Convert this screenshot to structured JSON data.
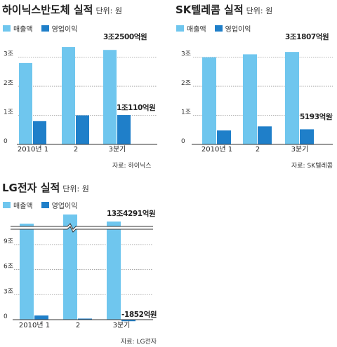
{
  "colors": {
    "revenue": "#6fc6ee",
    "operating_profit": "#1f7fc9",
    "grid": "#999999",
    "text": "#222222"
  },
  "legend": {
    "revenue": "매출액",
    "operating_profit": "영업이익"
  },
  "unit_label": "단위: 원",
  "chart_data": [
    {
      "type": "bar",
      "title": "하이닉스반도체 실적",
      "categories": [
        "2010년 1",
        "2",
        "3분기"
      ],
      "series": [
        {
          "name": "매출액",
          "values": [
            2.8,
            3.35,
            3.25
          ]
        },
        {
          "name": "영업이익",
          "values": [
            0.8,
            1.0,
            1.011
          ]
        }
      ],
      "yticks": [
        {
          "value": 0,
          "label": "0"
        },
        {
          "value": 1,
          "label": "1조"
        },
        {
          "value": 2,
          "label": "2조"
        },
        {
          "value": 3,
          "label": "3조"
        }
      ],
      "ylim": [
        0,
        3.4
      ],
      "annotations": [
        {
          "text": "3조2500억원",
          "series": 0,
          "index": 2
        },
        {
          "text": "1조110억원",
          "series": 1,
          "index": 2
        }
      ],
      "source": "자료: 하이닉스",
      "grid": true
    },
    {
      "type": "bar",
      "title": "SK텔레콤 실적",
      "categories": [
        "2010년 1",
        "2",
        "3분기"
      ],
      "series": [
        {
          "name": "매출액",
          "values": [
            3.0,
            3.1,
            3.18
          ]
        },
        {
          "name": "영업이익",
          "values": [
            0.48,
            0.62,
            0.52
          ]
        }
      ],
      "yticks": [
        {
          "value": 0,
          "label": "0"
        },
        {
          "value": 1,
          "label": "1조"
        },
        {
          "value": 2,
          "label": "2조"
        },
        {
          "value": 3,
          "label": "3조"
        }
      ],
      "ylim": [
        0,
        3.4
      ],
      "annotations": [
        {
          "text": "3조1807억원",
          "series": 0,
          "index": 2
        },
        {
          "text": "5193억원",
          "series": 1,
          "index": 2
        }
      ],
      "source": "자료: SK텔레콤",
      "grid": true
    },
    {
      "type": "bar",
      "title": "LG전자 실적",
      "categories": [
        "2010년 1",
        "2",
        "3분기"
      ],
      "series": [
        {
          "name": "매출액",
          "values": [
            13.5,
            14.0,
            13.4291
          ]
        },
        {
          "name": "영업이익",
          "values": [
            0.5,
            0.13,
            -0.1852
          ]
        }
      ],
      "yticks": [
        {
          "value": 0,
          "label": "0"
        },
        {
          "value": 3,
          "label": "3조"
        },
        {
          "value": 6,
          "label": "6조"
        },
        {
          "value": 9,
          "label": "9조"
        }
      ],
      "ylim": [
        0,
        10.5
      ],
      "axis_break": true,
      "annotations": [
        {
          "text": "13조4291억원",
          "series": 0,
          "index": 2
        },
        {
          "text": "-1852억원",
          "series": 1,
          "index": 2
        }
      ],
      "source": "자료: LG전자",
      "grid": true
    }
  ]
}
